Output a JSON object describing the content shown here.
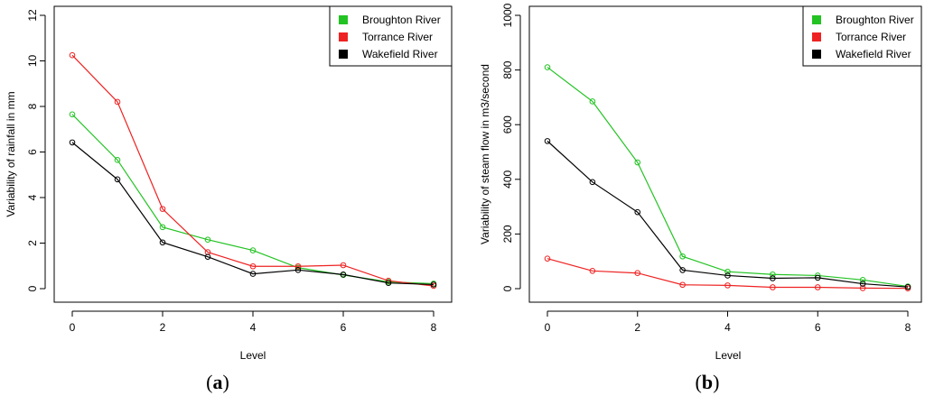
{
  "chart_data": [
    {
      "type": "line",
      "caption_prefix": "(",
      "caption_letter": "a",
      "caption_suffix": ")",
      "xlabel": "Level",
      "ylabel": "Variability of rainfall in mm",
      "xlim": [
        0,
        8
      ],
      "ylim": [
        0,
        12
      ],
      "xticks": [
        "0",
        "2",
        "4",
        "6",
        "8"
      ],
      "yticks": [
        "0",
        "2",
        "4",
        "6",
        "8",
        "10",
        "12"
      ],
      "legend_position": "top-right",
      "x": [
        0,
        1,
        2,
        3,
        4,
        5,
        6,
        7,
        8
      ],
      "series": [
        {
          "name": "Broughton River",
          "color": "#22c322",
          "values": [
            7.65,
            5.65,
            2.7,
            2.15,
            1.68,
            0.92,
            0.6,
            0.3,
            0.22
          ]
        },
        {
          "name": "Torrance River",
          "color": "#ee2222",
          "values": [
            10.25,
            8.2,
            3.5,
            1.6,
            0.98,
            0.98,
            1.03,
            0.35,
            0.12
          ]
        },
        {
          "name": "Wakefield River",
          "color": "#000000",
          "values": [
            6.42,
            4.8,
            2.03,
            1.4,
            0.65,
            0.82,
            0.62,
            0.25,
            0.18
          ]
        }
      ]
    },
    {
      "type": "line",
      "caption_prefix": "(",
      "caption_letter": "b",
      "caption_suffix": ")",
      "xlabel": "Level",
      "ylabel": "Variability of steam flow in m3/second",
      "xlim": [
        0,
        8
      ],
      "ylim": [
        0,
        1000
      ],
      "xticks": [
        "0",
        "2",
        "4",
        "6",
        "8"
      ],
      "yticks": [
        "0",
        "200",
        "400",
        "600",
        "800",
        "1000"
      ],
      "legend_position": "top-right",
      "x": [
        0,
        1,
        2,
        3,
        4,
        5,
        6,
        7,
        8
      ],
      "series": [
        {
          "name": "Broughton River",
          "color": "#22c322",
          "values": [
            810,
            685,
            462,
            118,
            62,
            52,
            48,
            32,
            8
          ]
        },
        {
          "name": "Torrance River",
          "color": "#ee2222",
          "values": [
            110,
            65,
            57,
            14,
            12,
            5,
            5,
            2,
            1
          ]
        },
        {
          "name": "Wakefield River",
          "color": "#000000",
          "values": [
            540,
            390,
            280,
            68,
            48,
            38,
            40,
            18,
            6
          ]
        }
      ]
    }
  ]
}
